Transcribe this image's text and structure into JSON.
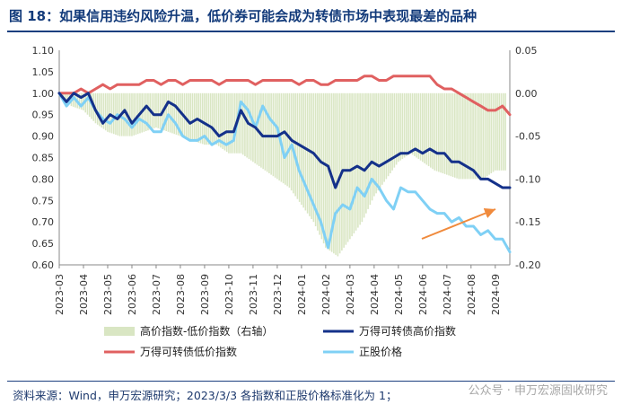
{
  "header": {
    "title": "图 18：如果信用违约风险升温，低价券可能会成为转债市场中表现最差的品种"
  },
  "footer": {
    "source": "资料来源：Wind，申万宏源研究；2023/3/3 各指数和正股价格标准化为 1；",
    "watermark": "公众号 · 申万宏源固收研究"
  },
  "colors": {
    "title": "#123a7a",
    "high_index": "#14318a",
    "low_index": "#e06060",
    "stock_price": "#7fd0f5",
    "spread_bars": "#d9e6c3",
    "arrow": "#f08a3c"
  },
  "chart_data": {
    "type": "line",
    "title": "",
    "x_tick_labels": [
      "2023-03",
      "2023-04",
      "2023-05",
      "2023-06",
      "2023-07",
      "2023-08",
      "2023-09",
      "2023-10",
      "2023-11",
      "2023-12",
      "2024-01",
      "2024-02",
      "2024-03",
      "2024-04",
      "2024-05",
      "2024-06",
      "2024-07",
      "2024-08",
      "2024-09"
    ],
    "y_left": {
      "range": [
        0.6,
        1.1
      ],
      "ticks": [
        "1.10",
        "1.05",
        "1.00",
        "0.95",
        "0.90",
        "0.85",
        "0.80",
        "0.75",
        "0.70",
        "0.65",
        "0.60"
      ]
    },
    "y_right": {
      "range": [
        -0.2,
        0.05
      ],
      "ticks": [
        "0.05",
        "0.00",
        "-0.05",
        "-0.10",
        "-0.15",
        "-0.20"
      ]
    },
    "legend_position": "bottom",
    "series": [
      {
        "name": "高价指数-低价指数（右轴）",
        "type": "bar",
        "axis": "right",
        "x": [
          0,
          0.5,
          1,
          1.5,
          2,
          2.5,
          3,
          3.5,
          4,
          4.5,
          5,
          5.5,
          6,
          6.5,
          7,
          7.5,
          8,
          8.5,
          9,
          9.5,
          10,
          10.5,
          11,
          11.5,
          12,
          12.5,
          13,
          13.5,
          14,
          14.5,
          15,
          15.5,
          16,
          16.5,
          17,
          17.5,
          18,
          18.5
        ],
        "values": [
          0.0,
          -0.015,
          -0.02,
          -0.035,
          -0.045,
          -0.05,
          -0.05,
          -0.045,
          -0.04,
          -0.045,
          -0.05,
          -0.055,
          -0.06,
          -0.06,
          -0.07,
          -0.07,
          -0.08,
          -0.09,
          -0.1,
          -0.11,
          -0.13,
          -0.15,
          -0.18,
          -0.19,
          -0.17,
          -0.15,
          -0.12,
          -0.1,
          -0.08,
          -0.07,
          -0.08,
          -0.09,
          -0.095,
          -0.1,
          -0.1,
          -0.1,
          -0.09,
          -0.09
        ]
      },
      {
        "name": "万得可转债高价指数",
        "type": "line",
        "axis": "left",
        "x": [
          0,
          0.3,
          0.6,
          0.9,
          1.2,
          1.5,
          1.8,
          2.1,
          2.4,
          2.7,
          3,
          3.3,
          3.6,
          3.9,
          4.2,
          4.5,
          4.8,
          5.1,
          5.4,
          5.7,
          6,
          6.3,
          6.6,
          6.9,
          7.2,
          7.5,
          7.8,
          8.1,
          8.4,
          8.7,
          9,
          9.3,
          9.6,
          9.9,
          10.2,
          10.5,
          10.8,
          11.1,
          11.4,
          11.7,
          12,
          12.3,
          12.6,
          12.9,
          13.2,
          13.5,
          13.8,
          14.1,
          14.4,
          14.7,
          15,
          15.3,
          15.6,
          15.9,
          16.2,
          16.5,
          16.8,
          17.1,
          17.4,
          17.7,
          18,
          18.3,
          18.6
        ],
        "values": [
          1.0,
          0.98,
          1.0,
          0.99,
          1.0,
          0.96,
          0.93,
          0.95,
          0.94,
          0.96,
          0.93,
          0.95,
          0.97,
          0.95,
          0.95,
          0.98,
          0.97,
          0.95,
          0.93,
          0.94,
          0.93,
          0.92,
          0.9,
          0.91,
          0.91,
          0.96,
          0.93,
          0.92,
          0.9,
          0.9,
          0.9,
          0.91,
          0.89,
          0.88,
          0.87,
          0.86,
          0.84,
          0.83,
          0.78,
          0.82,
          0.82,
          0.83,
          0.82,
          0.84,
          0.83,
          0.84,
          0.85,
          0.86,
          0.86,
          0.87,
          0.86,
          0.87,
          0.86,
          0.86,
          0.84,
          0.84,
          0.83,
          0.82,
          0.8,
          0.8,
          0.79,
          0.78,
          0.78
        ]
      },
      {
        "name": "万得可转债低价指数",
        "type": "line",
        "axis": "left",
        "x": [
          0,
          0.3,
          0.6,
          0.9,
          1.2,
          1.5,
          1.8,
          2.1,
          2.4,
          2.7,
          3,
          3.3,
          3.6,
          3.9,
          4.2,
          4.5,
          4.8,
          5.1,
          5.4,
          5.7,
          6,
          6.3,
          6.6,
          6.9,
          7.2,
          7.5,
          7.8,
          8.1,
          8.4,
          8.7,
          9,
          9.3,
          9.6,
          9.9,
          10.2,
          10.5,
          10.8,
          11.1,
          11.4,
          11.7,
          12,
          12.3,
          12.6,
          12.9,
          13.2,
          13.5,
          13.8,
          14.1,
          14.4,
          14.7,
          15,
          15.3,
          15.6,
          15.9,
          16.2,
          16.5,
          16.8,
          17.1,
          17.4,
          17.7,
          18,
          18.3,
          18.6
        ],
        "values": [
          1.0,
          1.0,
          1.0,
          1.01,
          1.0,
          1.01,
          1.02,
          1.01,
          1.02,
          1.02,
          1.02,
          1.02,
          1.03,
          1.03,
          1.02,
          1.03,
          1.03,
          1.02,
          1.03,
          1.03,
          1.03,
          1.03,
          1.02,
          1.03,
          1.03,
          1.03,
          1.03,
          1.02,
          1.03,
          1.03,
          1.03,
          1.03,
          1.03,
          1.02,
          1.03,
          1.03,
          1.02,
          1.02,
          1.03,
          1.03,
          1.03,
          1.03,
          1.04,
          1.04,
          1.03,
          1.03,
          1.04,
          1.04,
          1.04,
          1.04,
          1.04,
          1.04,
          1.02,
          1.01,
          1.01,
          1.0,
          0.99,
          0.98,
          0.97,
          0.96,
          0.96,
          0.97,
          0.95
        ]
      },
      {
        "name": "正股价格",
        "type": "line",
        "axis": "left",
        "x": [
          0,
          0.3,
          0.6,
          0.9,
          1.2,
          1.5,
          1.8,
          2.1,
          2.4,
          2.7,
          3,
          3.3,
          3.6,
          3.9,
          4.2,
          4.5,
          4.8,
          5.1,
          5.4,
          5.7,
          6,
          6.3,
          6.6,
          6.9,
          7.2,
          7.5,
          7.8,
          8.1,
          8.4,
          8.7,
          9,
          9.3,
          9.6,
          9.9,
          10.2,
          10.5,
          10.8,
          11.1,
          11.4,
          11.7,
          12,
          12.3,
          12.6,
          12.9,
          13.2,
          13.5,
          13.8,
          14.1,
          14.4,
          14.7,
          15,
          15.3,
          15.6,
          15.9,
          16.2,
          16.5,
          16.8,
          17.1,
          17.4,
          17.7,
          18,
          18.3,
          18.6
        ],
        "values": [
          1.0,
          0.97,
          0.99,
          0.97,
          0.99,
          0.96,
          0.94,
          0.93,
          0.95,
          0.94,
          0.92,
          0.94,
          0.93,
          0.91,
          0.91,
          0.95,
          0.93,
          0.9,
          0.89,
          0.89,
          0.9,
          0.88,
          0.89,
          0.88,
          0.89,
          0.98,
          0.96,
          0.92,
          0.97,
          0.94,
          0.92,
          0.85,
          0.88,
          0.82,
          0.78,
          0.74,
          0.7,
          0.64,
          0.72,
          0.74,
          0.73,
          0.78,
          0.76,
          0.8,
          0.78,
          0.75,
          0.73,
          0.78,
          0.77,
          0.77,
          0.75,
          0.73,
          0.72,
          0.72,
          0.7,
          0.71,
          0.69,
          0.69,
          0.67,
          0.68,
          0.66,
          0.66,
          0.63
        ]
      }
    ]
  }
}
